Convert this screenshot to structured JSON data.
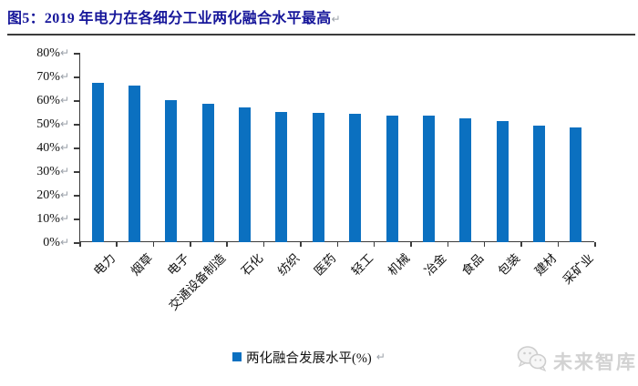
{
  "title": {
    "text": "图5：2019 年电力在各细分工业两化融合水平最高",
    "return_mark": "↵"
  },
  "chart_data": {
    "type": "bar",
    "title": "2019 年各细分工业两化融合水平",
    "categories": [
      "电力",
      "烟草",
      "电子",
      "交通设备制造",
      "石化",
      "纺织",
      "医药",
      "轻工",
      "机械",
      "冶金",
      "食品",
      "包装",
      "建材",
      "采矿业"
    ],
    "values": [
      67.4,
      66.1,
      60.0,
      58.6,
      57.0,
      55.0,
      54.7,
      54.1,
      53.5,
      53.3,
      52.5,
      51.2,
      49.2,
      48.5
    ],
    "xlabel": "",
    "ylabel": "",
    "ylim": [
      0,
      80
    ],
    "ytick_labels_top_down": [
      "80%",
      "70%",
      "60%",
      "50%",
      "40%",
      "30%",
      "20%",
      "10%",
      "0%"
    ],
    "grid": false,
    "legend": {
      "label": "两化融合发展水平(%)",
      "position": "bottom"
    },
    "tick_return_mark": "↵"
  },
  "watermark": {
    "text": "未来智库",
    "icon": "chat-bubbles-logo"
  },
  "colors": {
    "bar": "#0b70c0",
    "title": "#16169a",
    "axis": "#3c3c3c",
    "return_mark": "#9aa0a8",
    "watermark": "#d2d2d2"
  }
}
